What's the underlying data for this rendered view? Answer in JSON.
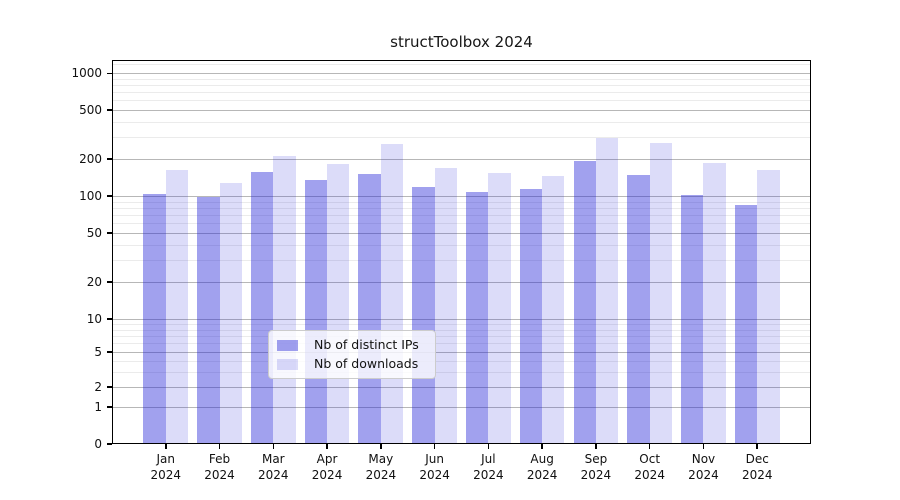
{
  "chart_data": {
    "type": "bar",
    "title": "structToolbox 2024",
    "year_label": "2024",
    "categories": [
      "Jan",
      "Feb",
      "Mar",
      "Apr",
      "May",
      "Jun",
      "Jul",
      "Aug",
      "Sep",
      "Oct",
      "Nov",
      "Dec"
    ],
    "series": [
      {
        "name": "Nb of distinct IPs",
        "color": "rgba(30,30,215,0.42)",
        "values": [
          103,
          98,
          158,
          136,
          152,
          118,
          107,
          113,
          192,
          148,
          101,
          85
        ]
      },
      {
        "name": "Nb of downloads",
        "color": "rgba(30,30,215,0.155)",
        "values": [
          163,
          128,
          210,
          181,
          265,
          168,
          154,
          146,
          298,
          270,
          187,
          163
        ]
      }
    ],
    "yscale": "symlog",
    "y_ticks": [
      0,
      1,
      2,
      5,
      10,
      20,
      50,
      100,
      200,
      500,
      1000
    ],
    "ylim": [
      0,
      1280
    ],
    "xlabel": "",
    "ylabel": "",
    "grid": true,
    "legend_position": "lower center",
    "colors": {
      "major_grid": "#b7b7b7",
      "minor_grid": "#ebebeb",
      "axis": "#000000",
      "text": "#111111"
    }
  }
}
